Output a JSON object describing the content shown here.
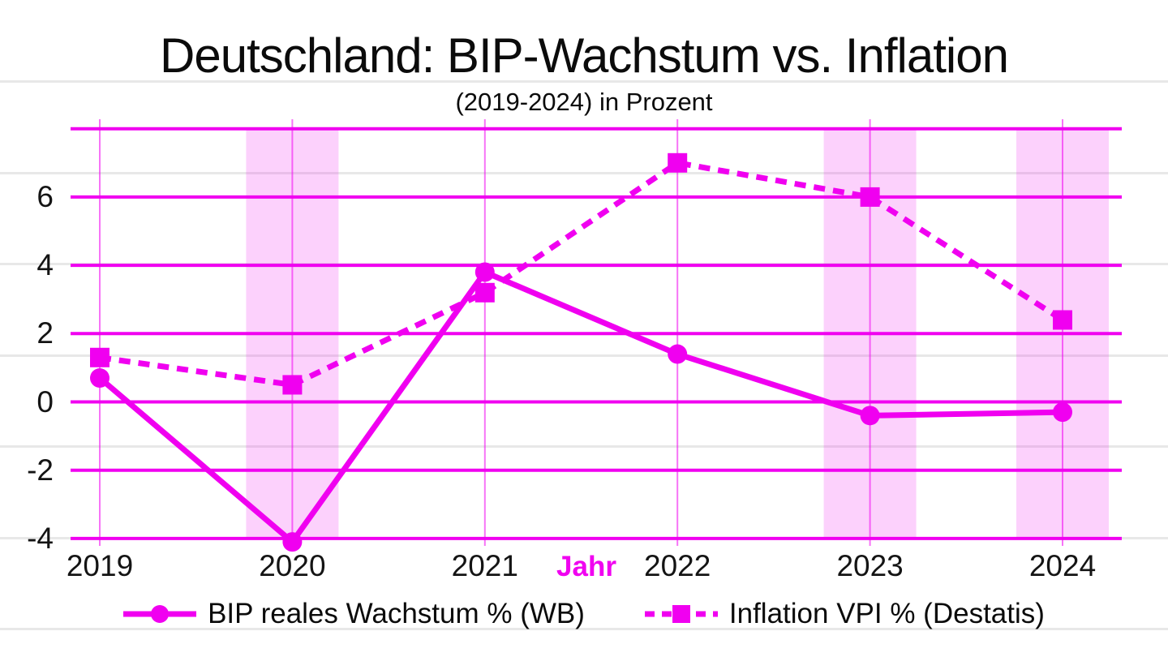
{
  "chart_data": {
    "type": "line",
    "title": "Deutschland: BIP-Wachstum vs. Inflation",
    "subtitle": "(2019-2024) in Prozent",
    "xlabel": "Jahr",
    "categories": [
      "2019",
      "2020",
      "2021",
      "2022",
      "2023",
      "2024"
    ],
    "x_numeric": [
      2019,
      2020,
      2021,
      2022,
      2023,
      2024
    ],
    "series": [
      {
        "name": "BIP reales Wachstum % (WB)",
        "line_style": "solid",
        "marker": "circle",
        "values": [
          0.7,
          -4.1,
          3.8,
          1.4,
          -0.4,
          -0.3
        ]
      },
      {
        "name": "Inflation VPI % (Destatis)",
        "line_style": "dashed",
        "marker": "square",
        "values": [
          1.3,
          0.5,
          3.2,
          7.0,
          6.0,
          2.4
        ]
      }
    ],
    "y_ticks": [
      "6",
      "4",
      "2",
      "0",
      "-2",
      "-4"
    ],
    "y_tick_values": [
      6,
      4,
      2,
      0,
      -2,
      -4
    ],
    "grid_values": [
      8,
      6,
      4,
      2,
      0,
      -2,
      -4
    ],
    "ylim": [
      -4.2,
      8.3
    ],
    "xlim": [
      2018.85,
      2024.3
    ],
    "grid": true,
    "legend_position": "bottom",
    "highlighted_years": [
      2020,
      2023,
      2024
    ],
    "colors": {
      "accent": "#F000F0",
      "band": "#F9CFF7",
      "stripe": "#E8E8E8",
      "text": "#0B0B0B"
    }
  }
}
